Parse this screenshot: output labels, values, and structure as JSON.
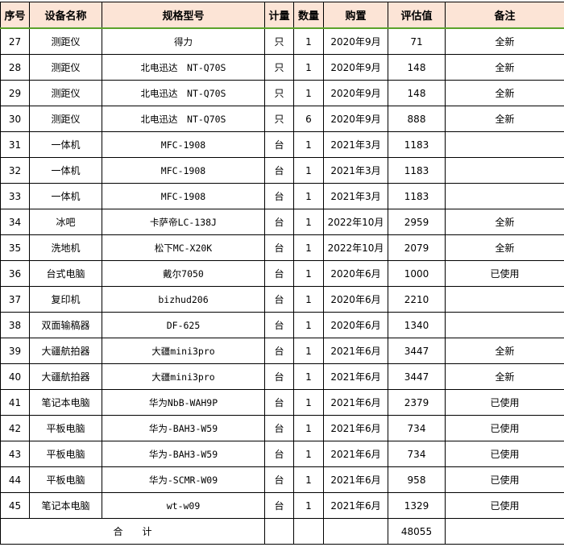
{
  "headers": [
    "序号",
    "设备名称",
    "规格型号",
    "计量",
    "数量",
    "购置",
    "评估值",
    "备注"
  ],
  "rows": [
    [
      "27",
      "测距仪",
      "得力",
      "只",
      "1",
      "2020年9月",
      "71",
      "全新"
    ],
    [
      "28",
      "测距仪",
      "北电迅达　NT-Q70S",
      "只",
      "1",
      "2020年9月",
      "148",
      "全新"
    ],
    [
      "29",
      "测距仪",
      "北电迅达　NT-Q70S",
      "只",
      "1",
      "2020年9月",
      "148",
      "全新"
    ],
    [
      "30",
      "测距仪",
      "北电迅达　NT-Q70S",
      "只",
      "6",
      "2020年9月",
      "888",
      "全新"
    ],
    [
      "31",
      "一体机",
      "MFC-1908",
      "台",
      "1",
      "2021年3月",
      "1183",
      ""
    ],
    [
      "32",
      "一体机",
      "MFC-1908",
      "台",
      "1",
      "2021年3月",
      "1183",
      ""
    ],
    [
      "33",
      "一体机",
      "MFC-1908",
      "台",
      "1",
      "2021年3月",
      "1183",
      ""
    ],
    [
      "34",
      "冰吧",
      "卡萨帝LC-138J",
      "台",
      "1",
      "2022年10月",
      "2959",
      "全新"
    ],
    [
      "35",
      "洗地机",
      "松下MC-X20K",
      "台",
      "1",
      "2022年10月",
      "2079",
      "全新"
    ],
    [
      "36",
      "台式电脑",
      "戴尔7050",
      "台",
      "1",
      "2020年6月",
      "1000",
      "已使用"
    ],
    [
      "37",
      "复印机",
      "bizhud206",
      "台",
      "1",
      "2020年6月",
      "2210",
      ""
    ],
    [
      "38",
      "双面输稿器",
      "DF-625",
      "台",
      "1",
      "2020年6月",
      "1340",
      ""
    ],
    [
      "39",
      "大疆航拍器",
      "大疆mini3pro",
      "台",
      "1",
      "2021年6月",
      "3447",
      "全新"
    ],
    [
      "40",
      "大疆航拍器",
      "大疆mini3pro",
      "台",
      "1",
      "2021年6月",
      "3447",
      "全新"
    ],
    [
      "41",
      "笔记本电脑",
      "华为NbB-WAH9P",
      "台",
      "1",
      "2021年6月",
      "2379",
      "已使用"
    ],
    [
      "42",
      "平板电脑",
      "华为-BAH3-W59",
      "台",
      "1",
      "2021年6月",
      "734",
      "已使用"
    ],
    [
      "43",
      "平板电脑",
      "华为-BAH3-W59",
      "台",
      "1",
      "2021年6月",
      "734",
      "已使用"
    ],
    [
      "44",
      "平板电脑",
      "华为-SCMR-W09",
      "台",
      "1",
      "2021年6月",
      "958",
      "已使用"
    ],
    [
      "45",
      "笔记本电脑",
      "wt-w09",
      "台",
      "1",
      "2021年6月",
      "1329",
      "已使用"
    ]
  ],
  "total": {
    "label": "合　　计",
    "value": "48055"
  },
  "colors": {
    "header_bg": "#FCE4D6",
    "header_rule": "#5BA32B"
  }
}
